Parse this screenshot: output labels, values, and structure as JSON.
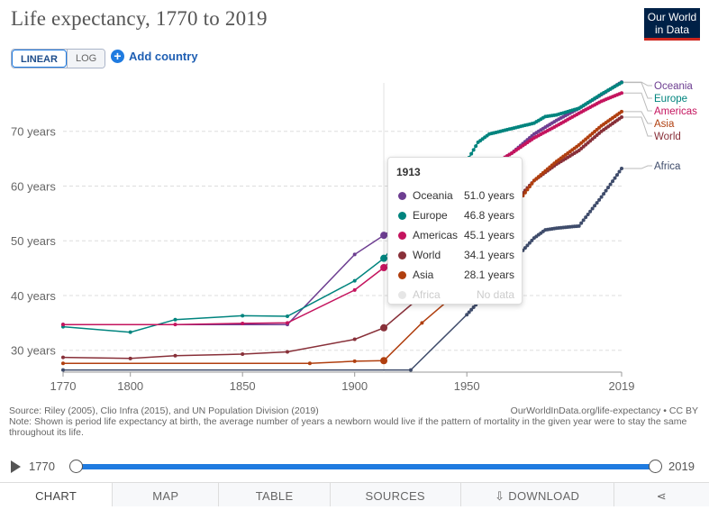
{
  "page": {
    "title": "Life expectancy, 1770 to 2019",
    "logo": {
      "line1": "Our World",
      "line2": "in Data"
    },
    "scale_toggle": {
      "linear": "LINEAR",
      "log": "LOG"
    },
    "add_country": "Add country",
    "source": "Source: Riley (2005), Clio Infra (2015), and UN Population Division (2019)",
    "source_right": "OurWorldInData.org/life-expectancy • CC BY",
    "note": "Note: Shown is period life expectancy at birth, the average number of years a newborn would live if the pattern of mortality in the given year were to stay the same throughout its life.",
    "timeline": {
      "start": "1770",
      "end": "2019"
    },
    "tabs": [
      "CHART",
      "MAP",
      "TABLE",
      "SOURCES",
      "DOWNLOAD"
    ]
  },
  "tooltip": {
    "year": "1913",
    "rows": [
      {
        "name": "Oceania",
        "value": "51.0 years",
        "color": "#6d3e91"
      },
      {
        "name": "Europe",
        "value": "46.8 years",
        "color": "#00847e"
      },
      {
        "name": "Americas",
        "value": "45.1 years",
        "color": "#c4145e"
      },
      {
        "name": "World",
        "value": "34.1 years",
        "color": "#883039"
      },
      {
        "name": "Asia",
        "value": "28.1 years",
        "color": "#b03f0f"
      },
      {
        "name": "Africa",
        "value": "No data",
        "color": "#e6e6e6"
      }
    ]
  },
  "chart_data": {
    "type": "line",
    "title": "Life expectancy, 1770 to 2019",
    "xlim": [
      1770,
      2019
    ],
    "ylim": [
      26,
      80
    ],
    "x_ticks": [
      {
        "value": 1770,
        "label": "1770"
      },
      {
        "value": 1800,
        "label": "1800"
      },
      {
        "value": 1850,
        "label": "1850"
      },
      {
        "value": 1900,
        "label": "1900"
      },
      {
        "value": 1950,
        "label": "1950"
      },
      {
        "value": 2019,
        "label": "2019"
      }
    ],
    "y_ticks": [
      {
        "value": 30,
        "label": "30 years"
      },
      {
        "value": 40,
        "label": "40 years"
      },
      {
        "value": 50,
        "label": "50 years"
      },
      {
        "value": 60,
        "label": "60 years"
      },
      {
        "value": 70,
        "label": "70 years"
      }
    ],
    "hover_year": 1913,
    "series": [
      {
        "name": "Oceania",
        "color": "#6d3e91",
        "points": [
          [
            1770,
            34.7
          ],
          [
            1870,
            34.7
          ],
          [
            1900,
            47.5
          ],
          [
            1913,
            51.0
          ],
          [
            1930,
            55.5
          ],
          [
            1950,
            61.0
          ],
          [
            1960,
            63.5
          ],
          [
            1970,
            66.0
          ],
          [
            1980,
            69.5
          ],
          [
            1990,
            72.0
          ],
          [
            2000,
            74.2
          ],
          [
            2010,
            76.7
          ],
          [
            2019,
            79.0
          ]
        ]
      },
      {
        "name": "Europe",
        "color": "#00847e",
        "points": [
          [
            1770,
            34.3
          ],
          [
            1800,
            33.3
          ],
          [
            1820,
            35.6
          ],
          [
            1850,
            36.3
          ],
          [
            1870,
            36.2
          ],
          [
            1900,
            42.7
          ],
          [
            1913,
            46.8
          ],
          [
            1930,
            55.5
          ],
          [
            1940,
            59.5
          ],
          [
            1950,
            64.5
          ],
          [
            1955,
            68.0
          ],
          [
            1960,
            69.5
          ],
          [
            1970,
            70.5
          ],
          [
            1980,
            71.5
          ],
          [
            1985,
            72.7
          ],
          [
            1990,
            73.0
          ],
          [
            2000,
            74.2
          ],
          [
            2010,
            76.8
          ],
          [
            2019,
            78.9
          ]
        ]
      },
      {
        "name": "Americas",
        "color": "#c4145e",
        "points": [
          [
            1770,
            34.7
          ],
          [
            1820,
            34.7
          ],
          [
            1850,
            34.9
          ],
          [
            1870,
            35.0
          ],
          [
            1900,
            41.0
          ],
          [
            1913,
            45.1
          ],
          [
            1930,
            52.0
          ],
          [
            1950,
            60.0
          ],
          [
            1960,
            63.5
          ],
          [
            1970,
            66.0
          ],
          [
            1980,
            68.8
          ],
          [
            1990,
            71.0
          ],
          [
            2000,
            73.3
          ],
          [
            2010,
            75.5
          ],
          [
            2019,
            77.0
          ]
        ]
      },
      {
        "name": "World",
        "color": "#883039",
        "points": [
          [
            1770,
            28.7
          ],
          [
            1800,
            28.5
          ],
          [
            1820,
            29.0
          ],
          [
            1850,
            29.3
          ],
          [
            1870,
            29.7
          ],
          [
            1900,
            32.0
          ],
          [
            1913,
            34.1
          ],
          [
            1930,
            40.0
          ],
          [
            1950,
            46.5
          ],
          [
            1960,
            50.5
          ],
          [
            1970,
            56.5
          ],
          [
            1980,
            61.0
          ],
          [
            1990,
            64.0
          ],
          [
            2000,
            66.5
          ],
          [
            2010,
            70.0
          ],
          [
            2019,
            72.6
          ]
        ]
      },
      {
        "name": "Asia",
        "color": "#b03f0f",
        "points": [
          [
            1770,
            27.6
          ],
          [
            1880,
            27.6
          ],
          [
            1900,
            28.0
          ],
          [
            1913,
            28.1
          ],
          [
            1930,
            35.0
          ],
          [
            1950,
            42.0
          ],
          [
            1960,
            47.0
          ],
          [
            1970,
            55.5
          ],
          [
            1980,
            61.0
          ],
          [
            1990,
            64.5
          ],
          [
            2000,
            67.5
          ],
          [
            2010,
            71.0
          ],
          [
            2019,
            73.6
          ]
        ]
      },
      {
        "name": "Africa",
        "color": "#3f4c6b",
        "points": [
          [
            1770,
            26.4
          ],
          [
            1925,
            26.4
          ],
          [
            1950,
            36.5
          ],
          [
            1960,
            41.0
          ],
          [
            1970,
            46.0
          ],
          [
            1980,
            50.5
          ],
          [
            1985,
            52.0
          ],
          [
            1990,
            52.3
          ],
          [
            2000,
            52.7
          ],
          [
            2010,
            58.0
          ],
          [
            2019,
            63.2
          ]
        ]
      }
    ],
    "legend": [
      "Oceania",
      "Europe",
      "Americas",
      "Asia",
      "World",
      "Africa"
    ]
  }
}
